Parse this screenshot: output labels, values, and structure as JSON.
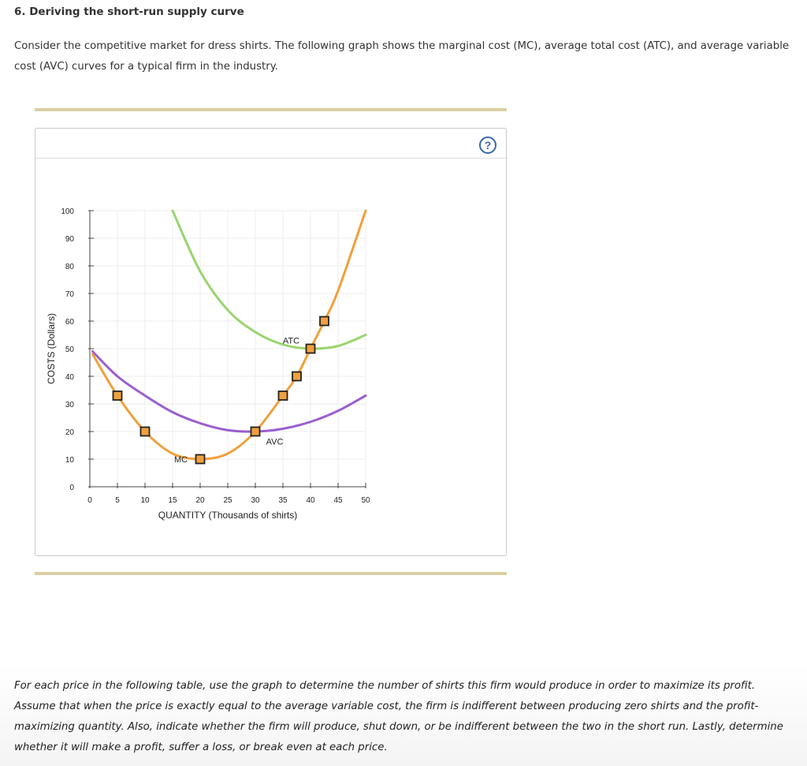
{
  "question": {
    "title": "6. Deriving the short-run supply curve",
    "intro": "Consider the competitive market for dress shirts. The following graph shows the marginal cost (MC), average total cost (ATC), and average variable cost (AVC) curves for a typical firm in the industry.",
    "instructions": "For each price in the following table, use the graph to determine the number of shirts this firm would produce in order to maximize its profit. Assume that when the price is exactly equal to the average variable cost, the firm is indifferent between producing zero shirts and the profit-maximizing quantity. Also, indicate whether the firm will produce, shut down, or be indifferent between the two in the short run. Lastly, determine whether it will make a profit, suffer a loss, or break even at each price."
  },
  "help_icon": {
    "name": "question-mark-icon",
    "label": "?"
  },
  "colors": {
    "mc": "#f0a03c",
    "atc": "#9ad46e",
    "avc": "#9b5fcf",
    "marker_fill": "#f0a03c",
    "marker_stroke": "#222222",
    "grid": "#eeeeee",
    "rule": "#d9cfa3"
  },
  "chart_data": {
    "type": "line",
    "xlabel": "QUANTITY (Thousands of shirts)",
    "ylabel": "COSTS (Dollars)",
    "xlim": [
      0,
      50
    ],
    "ylim": [
      0,
      100
    ],
    "xticks": [
      0,
      5,
      10,
      15,
      20,
      25,
      30,
      35,
      40,
      45,
      50
    ],
    "yticks": [
      0,
      10,
      20,
      30,
      40,
      50,
      60,
      70,
      80,
      90,
      100
    ],
    "grid": true,
    "series": [
      {
        "name": "MC",
        "color_key": "mc",
        "x": [
          0.5,
          5,
          10,
          15,
          20,
          25,
          30,
          35,
          37.5,
          40,
          42.5,
          45,
          50
        ],
        "y": [
          48,
          33,
          20,
          12,
          10,
          12,
          20,
          33,
          40,
          50,
          60,
          71,
          100
        ]
      },
      {
        "name": "ATC",
        "color_key": "atc",
        "x": [
          15,
          20,
          25,
          30,
          35,
          40,
          45,
          50
        ],
        "y": [
          100,
          78,
          64,
          56,
          51.5,
          50,
          51,
          55
        ]
      },
      {
        "name": "AVC",
        "color_key": "avc",
        "x": [
          0.5,
          5,
          10,
          15,
          20,
          25,
          30,
          35,
          40,
          45,
          50
        ],
        "y": [
          49,
          40,
          33,
          27,
          23,
          20.5,
          20,
          21,
          23.5,
          27.5,
          33
        ]
      }
    ],
    "markers": [
      {
        "x": 5,
        "y": 33
      },
      {
        "x": 10,
        "y": 20
      },
      {
        "x": 20,
        "y": 10
      },
      {
        "x": 30,
        "y": 20
      },
      {
        "x": 35,
        "y": 33
      },
      {
        "x": 37.5,
        "y": 40
      },
      {
        "x": 40,
        "y": 50
      },
      {
        "x": 42.5,
        "y": 60
      }
    ],
    "curve_labels": [
      {
        "text": "MC",
        "x": 16.5,
        "y": 10
      },
      {
        "text": "ATC",
        "x": 36.5,
        "y": 53
      },
      {
        "text": "AVC",
        "x": 33.5,
        "y": 16.5
      }
    ]
  }
}
